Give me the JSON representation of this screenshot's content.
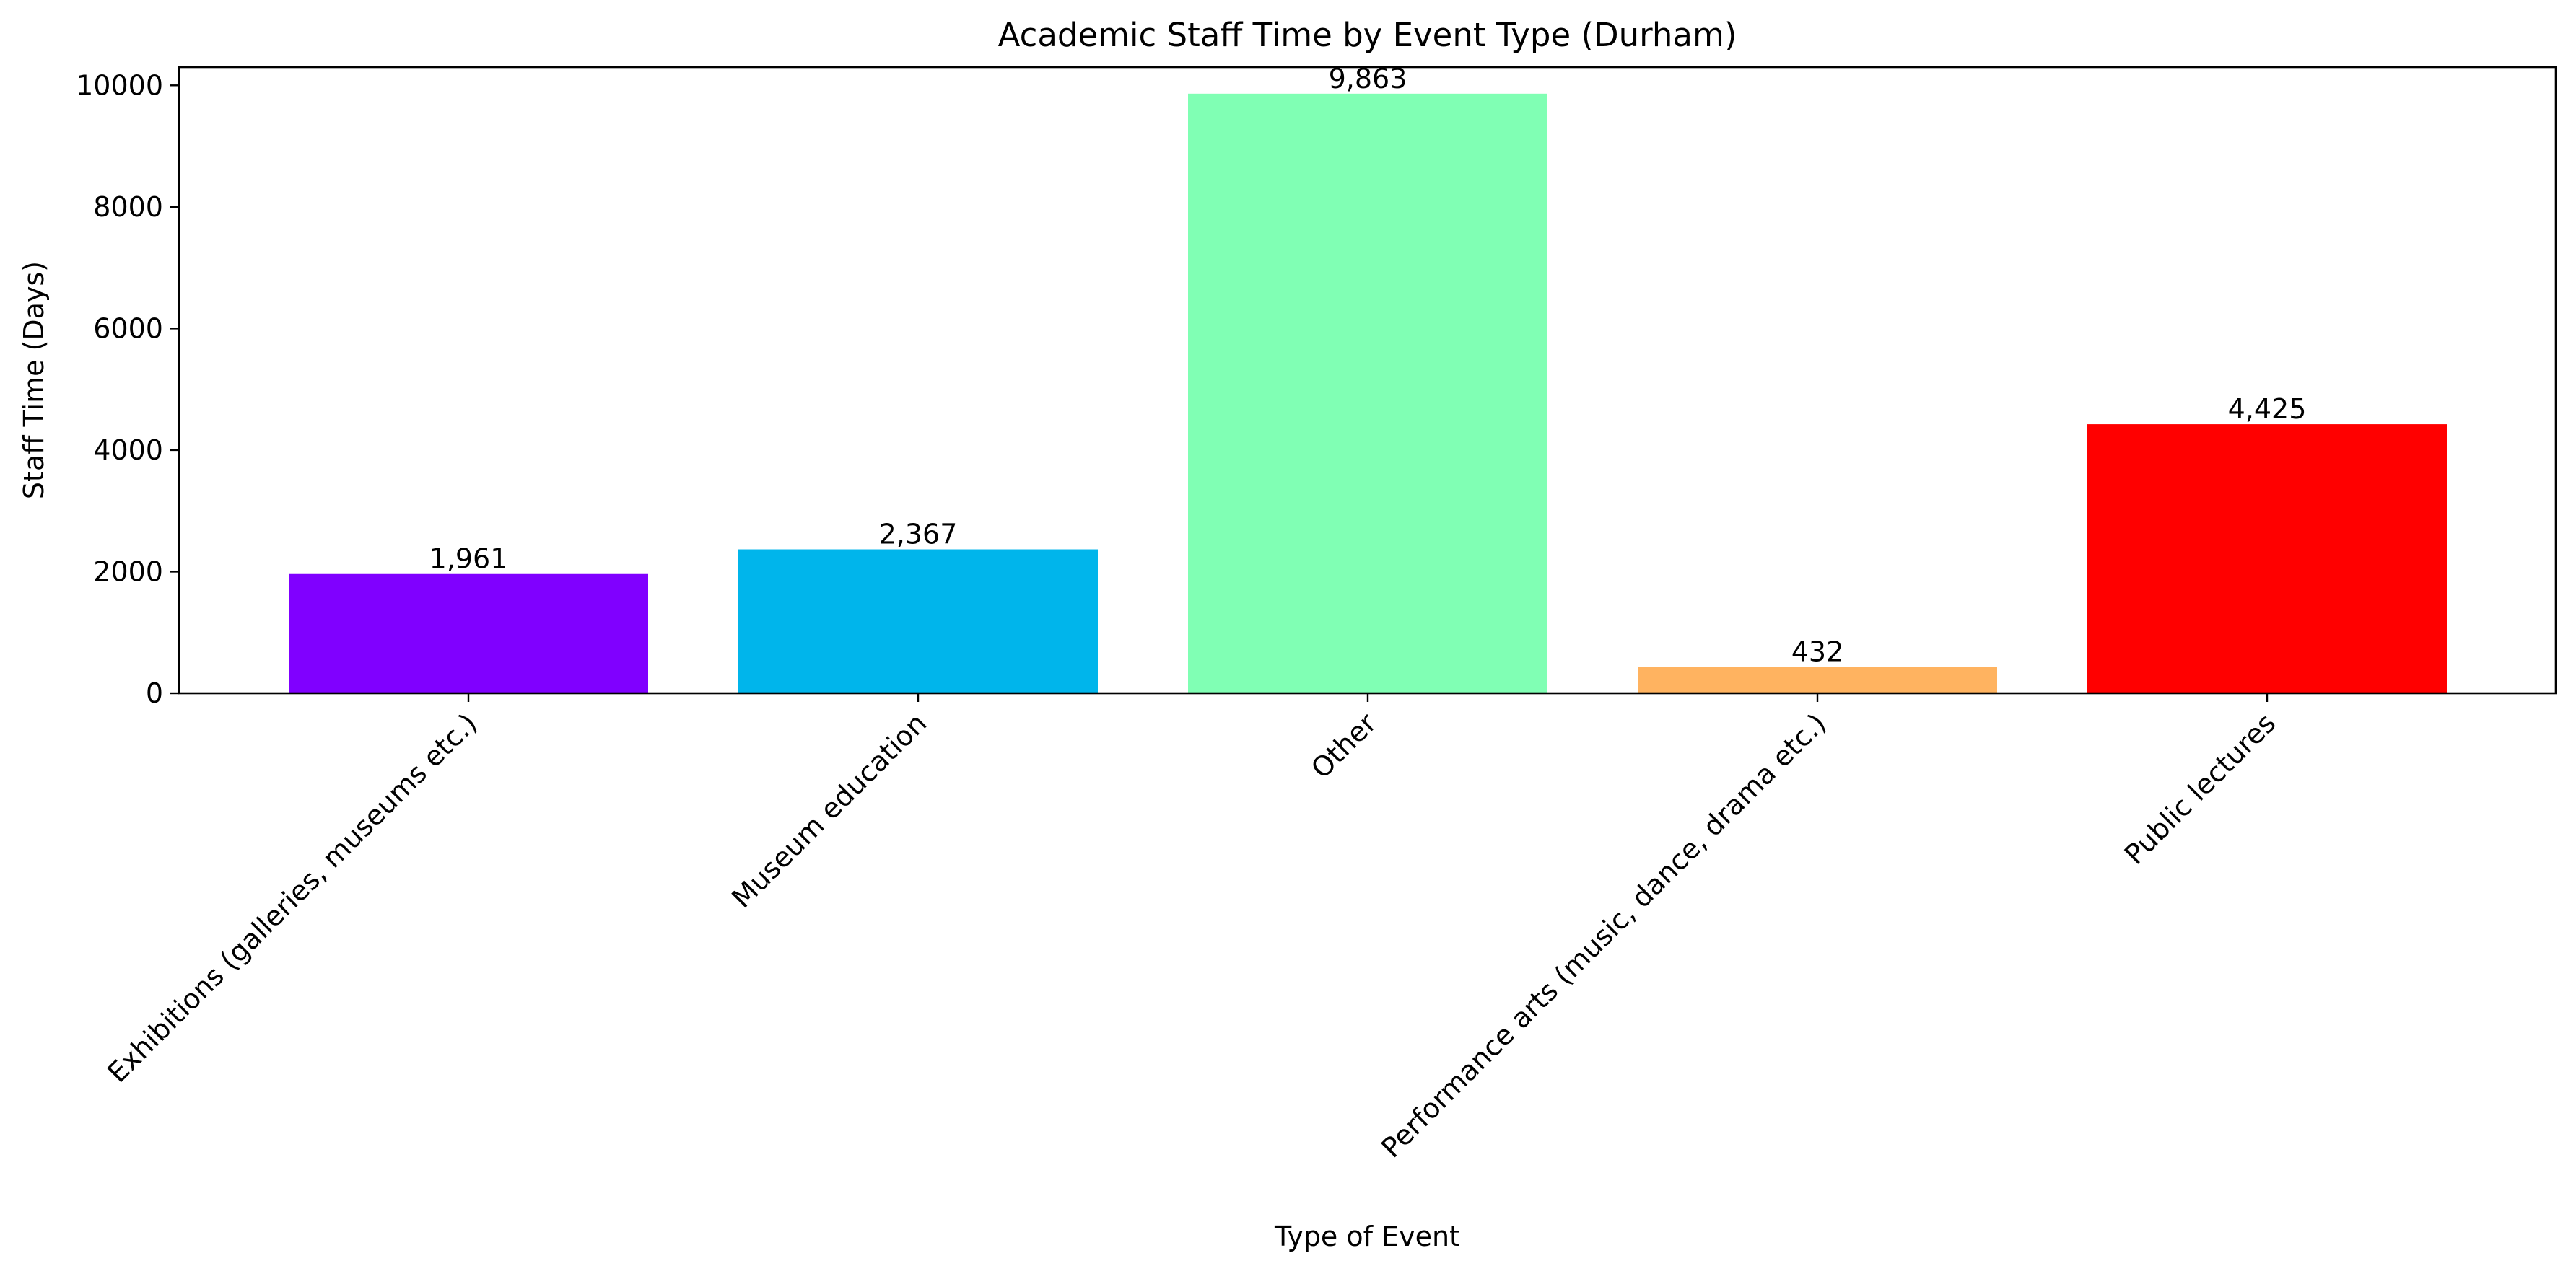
{
  "chart_data": {
    "type": "bar",
    "title": "Academic Staff Time by Event Type (Durham)",
    "xlabel": "Type of Event",
    "ylabel": "Staff Time (Days)",
    "categories": [
      "Exhibitions (galleries, museums etc.)",
      "Museum education",
      "Other",
      "Performance arts (music, dance, drama etc.)",
      "Public lectures"
    ],
    "values": [
      1961,
      2367,
      9863,
      432,
      4425
    ],
    "value_labels": [
      "1,961",
      "2,367",
      "9,863",
      "432",
      "4,425"
    ],
    "colors": [
      "#8000ff",
      "#00b5eb",
      "#80ffb4",
      "#ffb360",
      "#ff0000"
    ],
    "ylim": [
      0,
      10300
    ],
    "yticks": [
      0,
      2000,
      4000,
      6000,
      8000,
      10000
    ],
    "grid": false,
    "legend": "none"
  }
}
